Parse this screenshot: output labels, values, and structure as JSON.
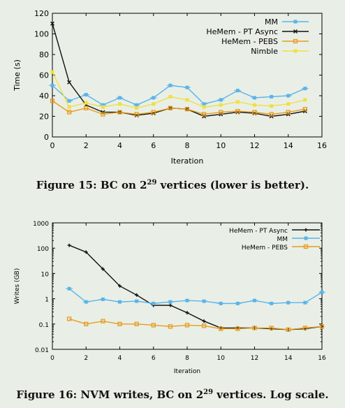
{
  "chart_data": [
    {
      "type": "line",
      "xlabel": "Iteration",
      "ylabel": "Time (s)",
      "xlim": [
        0,
        16
      ],
      "ylim": [
        0,
        120
      ],
      "xticks": [
        "0",
        "2",
        "4",
        "6",
        "8",
        "10",
        "12",
        "14",
        "16"
      ],
      "yticks": [
        "0",
        "20",
        "40",
        "60",
        "80",
        "100",
        "120"
      ],
      "legend_position": "top-right",
      "series": [
        {
          "name": "MM",
          "color": "#5ab4e8",
          "marker": "square",
          "x": [
            0,
            1,
            2,
            3,
            4,
            5,
            6,
            7,
            8,
            9,
            10,
            11,
            12,
            13,
            14,
            15
          ],
          "values": [
            50,
            35,
            41,
            31,
            38,
            31,
            38,
            50,
            48,
            32,
            36,
            45,
            38,
            39,
            40,
            47
          ]
        },
        {
          "name": "HeMem - PT Async",
          "color": "#111111",
          "marker": "x",
          "x": [
            0,
            1,
            2,
            3,
            4,
            5,
            6,
            7,
            8,
            9,
            10,
            11,
            12,
            13,
            14,
            15
          ],
          "values": [
            110,
            53,
            31,
            24,
            24,
            21,
            23,
            28,
            27,
            20,
            22,
            24,
            23,
            20,
            22,
            25
          ]
        },
        {
          "name": "HeMem - PEBS",
          "color": "#e89b1c",
          "marker": "open-square",
          "x": [
            0,
            1,
            2,
            3,
            4,
            5,
            6,
            7,
            8,
            9,
            10,
            11,
            12,
            13,
            14,
            15
          ],
          "values": [
            35,
            24,
            28,
            22,
            24,
            22,
            24,
            28,
            27,
            22,
            24,
            25,
            24,
            22,
            24,
            27
          ]
        },
        {
          "name": "Nimble",
          "color": "#f0e040",
          "marker": "filled-square",
          "x": [
            0,
            1,
            2,
            3,
            4,
            5,
            6,
            7,
            8,
            9,
            10,
            11,
            12,
            13,
            14,
            15
          ],
          "values": [
            63,
            29,
            33,
            29,
            32,
            28,
            32,
            39,
            36,
            29,
            31,
            34,
            31,
            30,
            32,
            36
          ]
        }
      ]
    },
    {
      "type": "line",
      "xlabel": "Iteration",
      "ylabel": "Writes (GB)",
      "yscale": "log",
      "xlim": [
        0,
        16
      ],
      "ylim": [
        0.01,
        1000
      ],
      "xticks": [
        "0",
        "2",
        "4",
        "6",
        "8",
        "10",
        "12",
        "14",
        "16"
      ],
      "yticks": [
        "0.01",
        "0.1",
        "1",
        "10",
        "100",
        "1000"
      ],
      "legend_position": "top-right",
      "series": [
        {
          "name": "HeMem - PT Async",
          "color": "#111111",
          "marker": "plus",
          "x": [
            1,
            2,
            3,
            4,
            5,
            6,
            7,
            8,
            9,
            10,
            11,
            12,
            13,
            14,
            15,
            16
          ],
          "values": [
            130,
            70,
            15,
            3.2,
            1.4,
            0.55,
            0.55,
            0.28,
            0.13,
            0.07,
            0.07,
            0.07,
            0.065,
            0.06,
            0.065,
            0.08
          ]
        },
        {
          "name": "MM",
          "color": "#5ab4e8",
          "marker": "square",
          "x": [
            1,
            2,
            3,
            4,
            5,
            6,
            7,
            8,
            9,
            10,
            11,
            12,
            13,
            14,
            15,
            16
          ],
          "values": [
            2.5,
            0.75,
            0.95,
            0.75,
            0.8,
            0.65,
            0.75,
            0.85,
            0.8,
            0.65,
            0.65,
            0.85,
            0.65,
            0.7,
            0.7,
            1.8
          ]
        },
        {
          "name": "HeMem - PEBS",
          "color": "#e89b1c",
          "marker": "open-square",
          "x": [
            1,
            2,
            3,
            4,
            5,
            6,
            7,
            8,
            9,
            10,
            11,
            12,
            13,
            14,
            15,
            16
          ],
          "values": [
            0.16,
            0.1,
            0.13,
            0.1,
            0.1,
            0.09,
            0.08,
            0.09,
            0.085,
            0.065,
            0.065,
            0.07,
            0.07,
            0.06,
            0.07,
            0.08
          ]
        }
      ]
    }
  ],
  "captions": {
    "fig15": {
      "pre": "Figure 15: BC on 2",
      "exp": "29",
      "post": " vertices (lower is better)."
    },
    "fig16": {
      "pre": "Figure 16: NVM writes, BC on 2",
      "exp": "29",
      "post": " vertices. Log scale."
    }
  }
}
